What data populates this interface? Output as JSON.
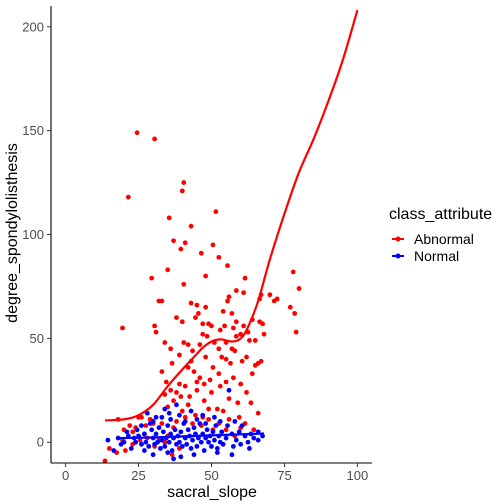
{
  "chart_data": {
    "type": "scatter",
    "xlabel": "sacral_slope",
    "ylabel": "degree_spondylolisthesis",
    "xlim": [
      -5,
      105
    ],
    "ylim": [
      -10,
      210
    ],
    "x_ticks": [
      0,
      25,
      50,
      75,
      100
    ],
    "y_ticks": [
      0,
      50,
      100,
      150,
      200
    ],
    "grid": false,
    "legend": {
      "title": "class_attribute",
      "position": "right",
      "entries": [
        "Abnormal",
        "Normal"
      ]
    },
    "colors": {
      "Abnormal": "#ff0000",
      "Normal": "#0000ff"
    },
    "series": [
      {
        "name": "Abnormal",
        "points": [
          [
            24.5,
            149
          ],
          [
            30.5,
            146
          ],
          [
            21.5,
            118
          ],
          [
            40.5,
            125
          ],
          [
            40,
            121
          ],
          [
            35.5,
            108
          ],
          [
            51.5,
            111
          ],
          [
            43,
            104
          ],
          [
            37,
            97
          ],
          [
            46.5,
            91
          ],
          [
            48,
            80
          ],
          [
            35,
            83
          ],
          [
            39.5,
            93
          ],
          [
            41,
            96
          ],
          [
            40.5,
            76
          ],
          [
            50.5,
            95
          ],
          [
            52.5,
            89
          ],
          [
            55.5,
            85
          ],
          [
            58.5,
            73
          ],
          [
            61,
            72
          ],
          [
            61.5,
            79
          ],
          [
            66.5,
            69
          ],
          [
            67,
            71
          ],
          [
            70,
            71
          ],
          [
            72.5,
            69
          ],
          [
            71.5,
            68
          ],
          [
            78,
            82
          ],
          [
            80,
            74
          ],
          [
            78.5,
            62
          ],
          [
            79,
            53
          ],
          [
            77,
            65
          ],
          [
            33,
            68
          ],
          [
            32,
            68
          ],
          [
            29.5,
            79
          ],
          [
            30.5,
            56
          ],
          [
            19.5,
            55
          ],
          [
            31,
            53
          ],
          [
            34,
            48
          ],
          [
            38,
            60
          ],
          [
            40,
            58
          ],
          [
            43,
            67
          ],
          [
            45,
            66
          ],
          [
            45.5,
            62
          ],
          [
            44.5,
            60
          ],
          [
            47,
            57
          ],
          [
            49,
            57
          ],
          [
            50,
            56
          ],
          [
            51,
            48
          ],
          [
            53,
            54
          ],
          [
            54,
            63
          ],
          [
            54.5,
            56
          ],
          [
            55.5,
            68
          ],
          [
            56,
            70
          ],
          [
            57,
            62
          ],
          [
            57.5,
            55
          ],
          [
            55,
            48
          ],
          [
            57,
            45
          ],
          [
            58.5,
            51
          ],
          [
            60,
            52
          ],
          [
            61,
            56
          ],
          [
            62.5,
            53
          ],
          [
            64,
            59
          ],
          [
            65,
            49
          ],
          [
            66.5,
            58
          ],
          [
            67.5,
            57
          ],
          [
            68,
            52
          ],
          [
            63,
            49
          ],
          [
            40.5,
            48
          ],
          [
            42,
            47
          ],
          [
            43.5,
            44
          ],
          [
            46,
            47
          ],
          [
            48,
            41
          ],
          [
            52.5,
            45
          ],
          [
            53.5,
            41
          ],
          [
            55,
            40
          ],
          [
            56.5,
            38
          ],
          [
            58,
            44
          ],
          [
            60.5,
            39
          ],
          [
            62,
            41
          ],
          [
            65,
            37
          ],
          [
            66,
            38
          ],
          [
            67,
            39
          ],
          [
            64,
            33
          ],
          [
            60,
            28
          ],
          [
            57.5,
            31
          ],
          [
            55,
            29
          ],
          [
            52.5,
            33
          ],
          [
            50.5,
            36
          ],
          [
            49.5,
            30
          ],
          [
            47.5,
            28
          ],
          [
            46,
            31
          ],
          [
            44,
            34
          ],
          [
            42,
            36
          ],
          [
            41,
            27
          ],
          [
            39,
            28
          ],
          [
            38,
            24
          ],
          [
            36,
            25
          ],
          [
            34.5,
            29
          ],
          [
            37,
            20
          ],
          [
            39.5,
            22
          ],
          [
            42.5,
            22
          ],
          [
            45,
            25
          ],
          [
            47.5,
            20
          ],
          [
            50,
            24
          ],
          [
            53,
            27
          ],
          [
            56,
            21
          ],
          [
            59,
            19
          ],
          [
            62,
            24
          ],
          [
            63.5,
            19
          ],
          [
            66,
            14
          ],
          [
            33,
            34
          ],
          [
            36.5,
            38
          ],
          [
            34,
            23
          ],
          [
            35,
            17
          ],
          [
            40,
            15
          ],
          [
            42,
            18
          ],
          [
            44.5,
            13
          ],
          [
            47,
            12
          ],
          [
            49,
            16
          ],
          [
            52,
            16
          ],
          [
            54,
            15
          ],
          [
            56,
            11
          ],
          [
            59.5,
            12
          ],
          [
            61.5,
            9
          ],
          [
            64.5,
            6
          ],
          [
            45,
            29
          ],
          [
            43,
            39
          ],
          [
            39,
            42
          ],
          [
            36,
            45
          ],
          [
            30,
            9
          ],
          [
            26,
            12
          ],
          [
            29,
            11
          ],
          [
            22,
            8
          ],
          [
            18,
            11
          ],
          [
            27,
            4
          ],
          [
            24,
            7
          ],
          [
            20,
            6
          ],
          [
            33,
            9
          ],
          [
            35,
            3
          ],
          [
            32,
            1
          ],
          [
            37,
            7
          ],
          [
            38,
            10
          ],
          [
            41,
            12
          ],
          [
            43.5,
            9
          ],
          [
            46.5,
            8
          ],
          [
            49,
            11
          ],
          [
            50.5,
            6
          ],
          [
            52.5,
            9
          ],
          [
            55,
            6
          ],
          [
            58,
            3
          ],
          [
            60,
            7
          ],
          [
            13.5,
            -9
          ],
          [
            15,
            -3
          ],
          [
            17.5,
            -5
          ],
          [
            20.5,
            -4
          ],
          [
            23,
            -1
          ],
          [
            25.5,
            1
          ],
          [
            28,
            2
          ],
          [
            30.5,
            -2
          ],
          [
            34,
            0
          ],
          [
            36.5,
            -6
          ],
          [
            39,
            -3
          ],
          [
            19.5,
            1
          ],
          [
            23,
            5
          ],
          [
            27.5,
            8
          ],
          [
            25,
            12
          ],
          [
            48.5,
            51
          ],
          [
            47,
            52
          ],
          [
            58.5,
            58
          ],
          [
            48,
            65
          ]
        ]
      },
      {
        "name": "Normal",
        "points": [
          [
            14.5,
            1
          ],
          [
            16.5,
            -4
          ],
          [
            18,
            2
          ],
          [
            20,
            0
          ],
          [
            21.5,
            3
          ],
          [
            22.5,
            -3
          ],
          [
            24,
            0
          ],
          [
            25,
            3
          ],
          [
            26,
            -1
          ],
          [
            27,
            4
          ],
          [
            27.5,
            0
          ],
          [
            28.5,
            -2
          ],
          [
            29.5,
            6
          ],
          [
            30,
            2
          ],
          [
            30.5,
            -1
          ],
          [
            31,
            4
          ],
          [
            31.5,
            0
          ],
          [
            32,
            7
          ],
          [
            32.5,
            -3
          ],
          [
            33,
            1
          ],
          [
            33.5,
            5
          ],
          [
            34,
            -2
          ],
          [
            34.5,
            2
          ],
          [
            35,
            8
          ],
          [
            35.5,
            0
          ],
          [
            36,
            4
          ],
          [
            36.5,
            -4
          ],
          [
            37,
            2
          ],
          [
            37.5,
            6
          ],
          [
            38,
            -1
          ],
          [
            38.5,
            3
          ],
          [
            39,
            0
          ],
          [
            39.5,
            5
          ],
          [
            40,
            -2
          ],
          [
            40.5,
            9
          ],
          [
            41,
            2
          ],
          [
            41.5,
            -1
          ],
          [
            42,
            6
          ],
          [
            42.5,
            3
          ],
          [
            43,
            -3
          ],
          [
            43.5,
            1
          ],
          [
            44,
            7
          ],
          [
            44.5,
            4
          ],
          [
            45,
            -2
          ],
          [
            45.5,
            2
          ],
          [
            46,
            9
          ],
          [
            46.5,
            0
          ],
          [
            47,
            4
          ],
          [
            47.5,
            -4
          ],
          [
            48,
            2
          ],
          [
            48.5,
            6
          ],
          [
            49,
            0
          ],
          [
            49.5,
            3
          ],
          [
            50,
            -2
          ],
          [
            50.5,
            5
          ],
          [
            51,
            1
          ],
          [
            51.5,
            8
          ],
          [
            52,
            -3
          ],
          [
            52.5,
            3
          ],
          [
            53,
            0
          ],
          [
            53.5,
            5
          ],
          [
            54,
            -1
          ],
          [
            55,
            2
          ],
          [
            56,
            25
          ],
          [
            57,
            4
          ],
          [
            57.5,
            -2
          ],
          [
            58.5,
            1
          ],
          [
            59.5,
            5
          ],
          [
            60.5,
            8
          ],
          [
            61.5,
            3
          ],
          [
            62.5,
            0
          ],
          [
            63.5,
            4
          ],
          [
            64.5,
            2
          ],
          [
            66,
            5
          ],
          [
            67.5,
            3
          ],
          [
            28,
            14
          ],
          [
            30,
            10
          ],
          [
            33,
            12
          ],
          [
            36,
            11
          ],
          [
            39,
            13
          ],
          [
            29,
            9
          ],
          [
            35.5,
            14
          ],
          [
            41,
            10
          ],
          [
            34,
            16
          ],
          [
            26,
            8
          ],
          [
            24.5,
            6
          ],
          [
            45,
            11
          ],
          [
            48,
            9
          ],
          [
            51,
            12
          ],
          [
            53,
            10
          ],
          [
            55.5,
            8
          ],
          [
            58,
            10
          ],
          [
            43,
            15
          ],
          [
            38,
            18
          ],
          [
            31,
            12
          ],
          [
            47,
            13
          ],
          [
            52,
            -5
          ],
          [
            57,
            -6
          ],
          [
            44,
            -6
          ],
          [
            39.5,
            -7
          ],
          [
            35,
            -5
          ],
          [
            30,
            -6
          ],
          [
            27,
            -4
          ],
          [
            23.5,
            2
          ],
          [
            21,
            5
          ],
          [
            19,
            -1
          ],
          [
            60,
            -1
          ],
          [
            63,
            -3
          ],
          [
            66,
            1
          ],
          [
            37,
            -8
          ]
        ]
      }
    ],
    "fits": [
      {
        "name": "Abnormal",
        "points": [
          [
            13.5,
            10.5
          ],
          [
            20,
            11
          ],
          [
            25,
            13
          ],
          [
            30,
            18
          ],
          [
            35,
            27
          ],
          [
            40,
            35
          ],
          [
            44,
            41
          ],
          [
            47,
            45.5
          ],
          [
            50,
            48.5
          ],
          [
            53,
            49.5
          ],
          [
            55,
            49
          ],
          [
            57,
            48.5
          ],
          [
            59,
            49
          ],
          [
            61,
            51.5
          ],
          [
            63,
            57
          ],
          [
            66,
            68
          ],
          [
            70,
            88
          ],
          [
            75,
            110
          ],
          [
            80,
            130
          ],
          [
            85,
            146
          ],
          [
            90,
            164
          ],
          [
            95,
            184
          ],
          [
            100,
            208
          ]
        ]
      },
      {
        "name": "Normal",
        "points": [
          [
            18,
            2
          ],
          [
            30,
            2.3
          ],
          [
            40,
            2.8
          ],
          [
            50,
            3.3
          ],
          [
            60,
            3.8
          ],
          [
            68,
            4.2
          ]
        ]
      }
    ]
  }
}
